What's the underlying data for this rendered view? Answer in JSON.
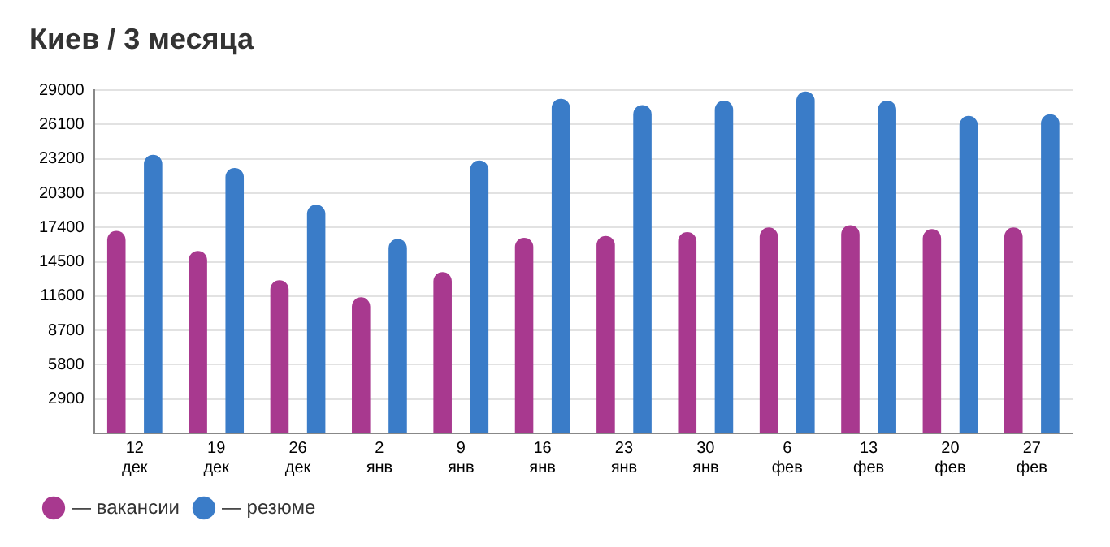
{
  "chart_data": {
    "type": "bar",
    "title": "Киев / 3 месяца",
    "categories": [
      "12\nдек",
      "19\nдек",
      "26\nдек",
      "2\nянв",
      "9\nянв",
      "16\nянв",
      "23\nянв",
      "30\nянв",
      "6\nфев",
      "13\nфев",
      "20\nфев",
      "27\nфев"
    ],
    "series": [
      {
        "name": "— вакансии",
        "color": "#a8398f",
        "values": [
          17110,
          15420,
          12950,
          11500,
          13630,
          16530,
          16680,
          17010,
          17400,
          17590,
          17260,
          17400
        ]
      },
      {
        "name": "— резюме",
        "color": "#3a7cc8",
        "values": [
          23540,
          22430,
          19330,
          16430,
          23060,
          28280,
          27750,
          28130,
          28900,
          28130,
          26830,
          26970
        ]
      }
    ],
    "ylim": [
      0,
      29000
    ],
    "yticks": [
      {
        "value": 0,
        "label": null
      },
      2900,
      5800,
      8700,
      11600,
      14500,
      17400,
      20300,
      23200,
      26100,
      29000
    ],
    "grid": "y",
    "legend": "bottom left"
  }
}
